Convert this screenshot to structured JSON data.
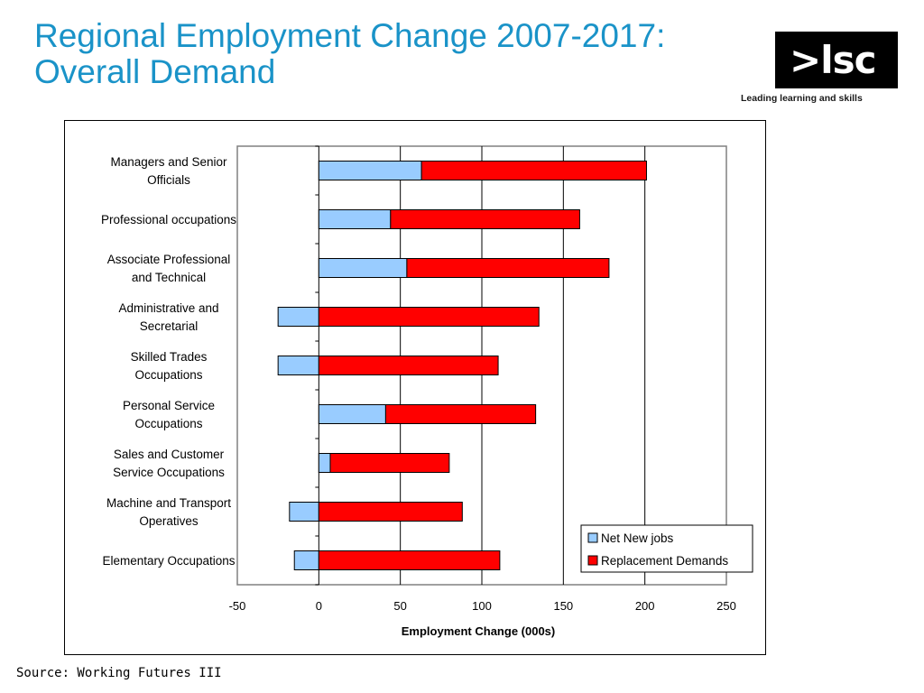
{
  "title": {
    "line1": "Regional Employment Change 2007-2017:",
    "line2": "Overall Demand"
  },
  "logo": {
    "text": ">lsc",
    "tagline": "Leading learning and skills"
  },
  "source": "Source: Working Futures III",
  "chart_data": {
    "type": "bar",
    "orientation": "horizontal",
    "stacked": true,
    "categories": [
      [
        "Managers and Senior",
        "Officials"
      ],
      [
        "Professional occupations"
      ],
      [
        "Associate Professional",
        "and Technical"
      ],
      [
        "Administrative and",
        "Secretarial"
      ],
      [
        "Skilled Trades",
        "Occupations"
      ],
      [
        "Personal Service",
        "Occupations"
      ],
      [
        "Sales and Customer",
        "Service Occupations"
      ],
      [
        "Machine and Transport",
        "Operatives"
      ],
      [
        "Elementary Occupations"
      ]
    ],
    "series": [
      {
        "name": "Net New jobs",
        "color": "#99ccff",
        "values": [
          63,
          44,
          54,
          -25,
          -25,
          41,
          7,
          -18,
          -15
        ]
      },
      {
        "name": "Replacement Demands",
        "color": "#ff0000",
        "values": [
          138,
          116,
          124,
          135,
          110,
          92,
          73,
          88,
          111
        ]
      }
    ],
    "xlabel": "Employment Change (000s)",
    "xlim": [
      -50,
      250
    ],
    "xticks": [
      "-50",
      "0",
      "50",
      "100",
      "150",
      "200",
      "250"
    ],
    "grid": "vertical",
    "legend_position": "bottom-right"
  }
}
